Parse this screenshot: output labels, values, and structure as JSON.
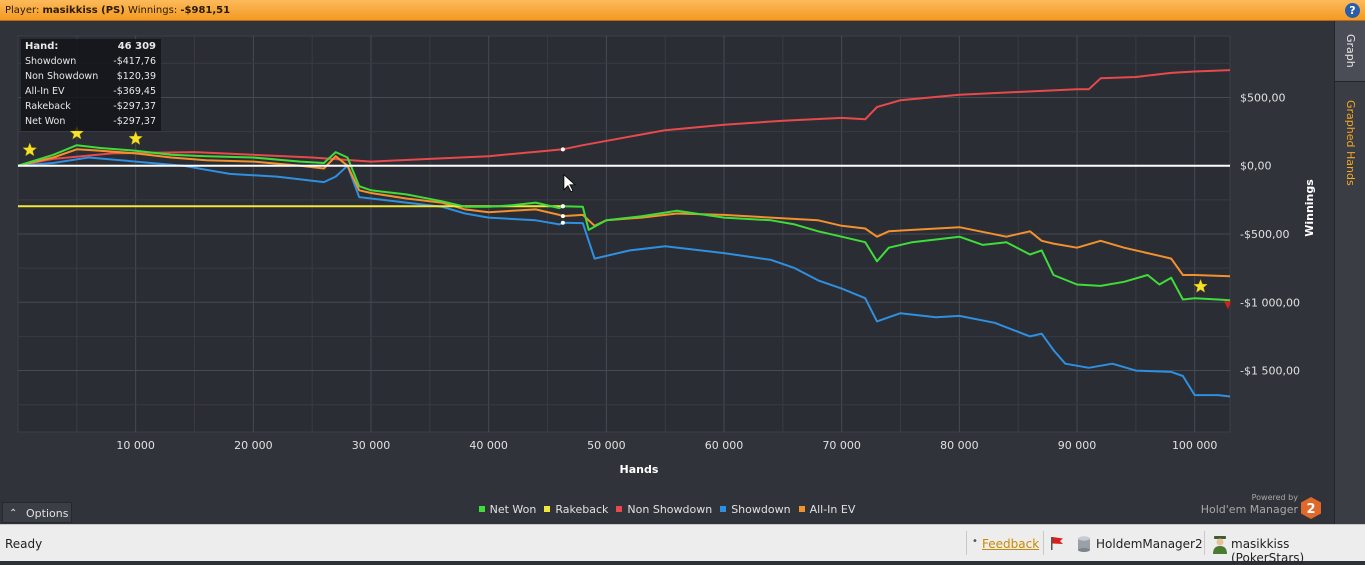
{
  "titlebar": {
    "player_label": "Player:",
    "player_name": "masikkiss (PS)",
    "winnings_label": "Winnings:",
    "winnings_value": "-$981,51",
    "help_icon": "question-icon"
  },
  "sidetabs": {
    "graph": "Graph",
    "graphed_hands": "Graphed Hands"
  },
  "stats": [
    {
      "label": "Hand:",
      "value": "46 309"
    },
    {
      "label": "Showdown",
      "value": "-$417,76"
    },
    {
      "label": "Non Showdown",
      "value": "$120,39"
    },
    {
      "label": "All-In EV",
      "value": "-$369,45"
    },
    {
      "label": "Rakeback",
      "value": "-$297,37"
    },
    {
      "label": "Net Won",
      "value": "-$297,37"
    }
  ],
  "options": {
    "label": "Options",
    "icon": "chevron-up-icon"
  },
  "powered": {
    "line1": "Powered by",
    "line2": "Hold'em Manager",
    "logo": "2"
  },
  "status": {
    "ready": "Ready",
    "feedback": "Feedback",
    "flag_icon": "red-flag-icon",
    "db_icon": "database-icon",
    "database": "HoldemManager2",
    "user_icon": "user-icon",
    "user": "masikkiss (PokerStars)"
  },
  "colors": {
    "net_won": "#3fdc3a",
    "rakeback": "#f2e63a",
    "non_showdown": "#e8494c",
    "showdown": "#2f8fe0",
    "allin_ev": "#f2912e",
    "accent": "#f39a22"
  },
  "chart_data": {
    "type": "line",
    "xlabel": "Hands",
    "ylabel": "Winnings",
    "xlim": [
      0,
      103000
    ],
    "ylim": [
      -1950,
      950
    ],
    "x_ticks": [
      10000,
      20000,
      30000,
      40000,
      50000,
      60000,
      70000,
      80000,
      90000,
      100000
    ],
    "x_tick_labels": [
      "10 000",
      "20 000",
      "30 000",
      "40 000",
      "50 000",
      "60 000",
      "70 000",
      "80 000",
      "90 000",
      "100 000"
    ],
    "y_ticks": [
      500,
      0,
      -500,
      -1000,
      -1500
    ],
    "y_tick_labels": [
      "$500,00",
      "$0,00",
      "-$500,00",
      "-$1 000,00",
      "-$1 500,00"
    ],
    "grid": true,
    "legend_position": "bottom-center",
    "cursor_hand": 46309,
    "series": [
      {
        "name": "Net Won",
        "color": "#3fdc3a",
        "x": [
          0,
          3000,
          5000,
          7000,
          10000,
          13000,
          16000,
          20000,
          24000,
          26000,
          27000,
          28000,
          29000,
          30000,
          33000,
          36000,
          38000,
          40000,
          42000,
          44000,
          46000,
          46309,
          48000,
          48500,
          50000,
          53000,
          56000,
          60000,
          64000,
          66000,
          68000,
          70000,
          72000,
          73000,
          74000,
          76000,
          80000,
          82000,
          84000,
          86000,
          87000,
          88000,
          90000,
          92000,
          94000,
          96000,
          97000,
          98000,
          99000,
          100000,
          102000,
          103000
        ],
        "y": [
          0,
          80,
          150,
          130,
          110,
          80,
          70,
          60,
          30,
          20,
          100,
          60,
          -150,
          -180,
          -210,
          -260,
          -300,
          -300,
          -290,
          -270,
          -310,
          -297,
          -300,
          -470,
          -400,
          -370,
          -330,
          -380,
          -400,
          -430,
          -480,
          -520,
          -560,
          -700,
          -600,
          -560,
          -520,
          -580,
          -560,
          -650,
          -620,
          -800,
          -870,
          -880,
          -850,
          -800,
          -870,
          -820,
          -980,
          -970,
          -980,
          -985
        ]
      },
      {
        "name": "Rakeback",
        "color": "#f2e63a",
        "x": [
          0,
          46309
        ],
        "y": [
          -297,
          -297
        ]
      },
      {
        "name": "Non Showdown",
        "color": "#e8494c",
        "x": [
          0,
          3000,
          8000,
          15000,
          20000,
          25000,
          30000,
          35000,
          40000,
          45000,
          46309,
          48000,
          55000,
          60000,
          65000,
          70000,
          72000,
          73000,
          75000,
          80000,
          85000,
          90000,
          91000,
          92000,
          95000,
          98000,
          100000,
          103000
        ],
        "y": [
          0,
          50,
          90,
          100,
          80,
          60,
          30,
          50,
          70,
          110,
          120,
          150,
          260,
          300,
          330,
          350,
          340,
          430,
          480,
          520,
          540,
          560,
          560,
          640,
          650,
          680,
          690,
          700
        ]
      },
      {
        "name": "Showdown",
        "color": "#2f8fe0",
        "x": [
          0,
          3000,
          6000,
          10000,
          14000,
          18000,
          22000,
          26000,
          27000,
          28000,
          29000,
          30000,
          33000,
          36000,
          38000,
          40000,
          42000,
          44000,
          46000,
          46309,
          48000,
          49000,
          52000,
          55000,
          60000,
          64000,
          66000,
          68000,
          70000,
          72000,
          73000,
          75000,
          78000,
          80000,
          83000,
          86000,
          87000,
          88000,
          89000,
          91000,
          93000,
          95000,
          98000,
          99000,
          100000,
          102000,
          103000
        ],
        "y": [
          0,
          20,
          60,
          30,
          0,
          -60,
          -80,
          -120,
          -80,
          0,
          -230,
          -240,
          -270,
          -300,
          -350,
          -380,
          -390,
          -400,
          -430,
          -418,
          -420,
          -680,
          -620,
          -590,
          -640,
          -690,
          -750,
          -840,
          -900,
          -970,
          -1140,
          -1080,
          -1110,
          -1100,
          -1150,
          -1250,
          -1230,
          -1350,
          -1450,
          -1480,
          -1450,
          -1500,
          -1510,
          -1540,
          -1680,
          -1680,
          -1690
        ]
      },
      {
        "name": "All-In EV",
        "color": "#f2912e",
        "x": [
          0,
          3000,
          5000,
          7000,
          10000,
          13000,
          16000,
          20000,
          24000,
          26000,
          27000,
          28000,
          29000,
          30000,
          33000,
          36000,
          38000,
          40000,
          42000,
          44000,
          46000,
          46309,
          48000,
          49000,
          50000,
          53000,
          56000,
          60000,
          64000,
          68000,
          70000,
          72000,
          73000,
          74000,
          76000,
          80000,
          84000,
          86000,
          87000,
          88000,
          90000,
          92000,
          94000,
          96000,
          97000,
          98000,
          99000,
          100000,
          103000
        ],
        "y": [
          0,
          60,
          120,
          110,
          90,
          60,
          40,
          30,
          0,
          -20,
          70,
          0,
          -180,
          -200,
          -240,
          -270,
          -320,
          -340,
          -330,
          -320,
          -360,
          -369,
          -360,
          -440,
          -400,
          -380,
          -350,
          -360,
          -380,
          -400,
          -440,
          -460,
          -520,
          -480,
          -470,
          -450,
          -520,
          -480,
          -550,
          -570,
          -600,
          -550,
          -600,
          -640,
          -660,
          -680,
          -800,
          -800,
          -810
        ]
      }
    ],
    "star_markers_x": [
      1000,
      5000,
      10000,
      100500
    ]
  }
}
